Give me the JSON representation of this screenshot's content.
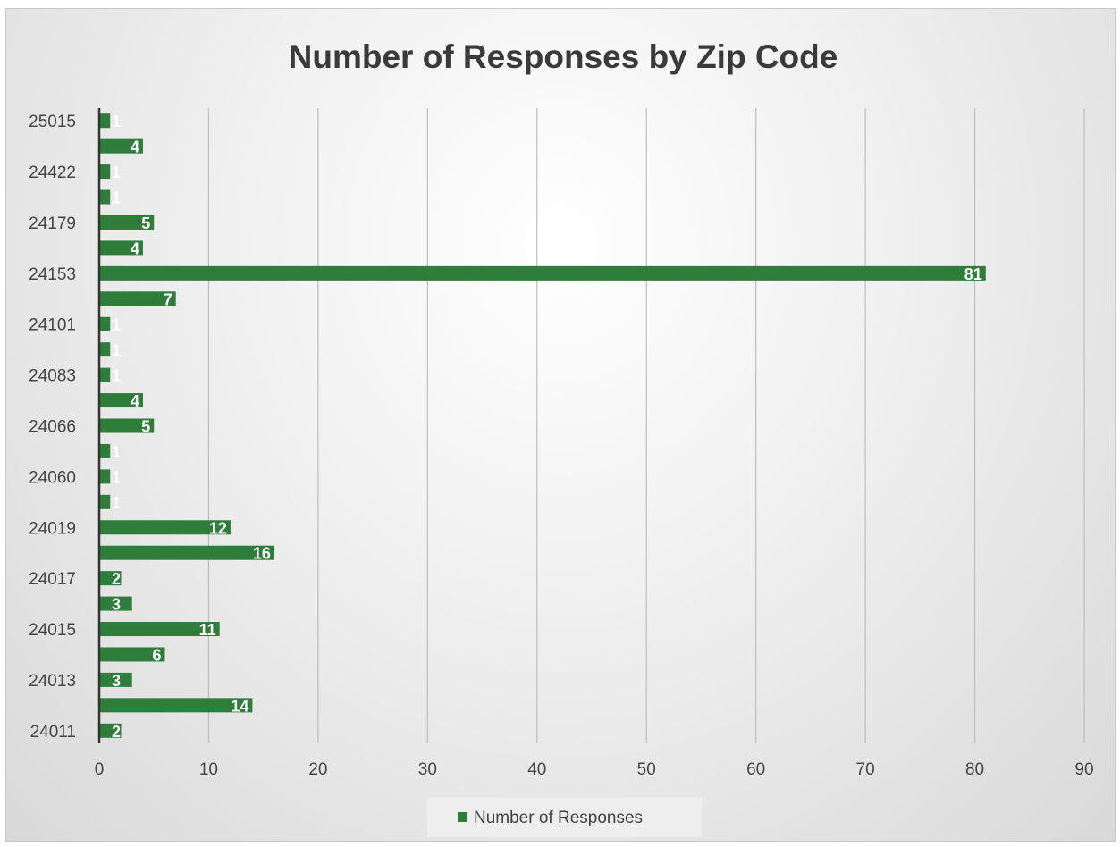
{
  "chart_data": {
    "type": "bar",
    "orientation": "horizontal",
    "title": "Number of Responses by Zip Code",
    "xlabel": "",
    "ylabel": "",
    "xlim": [
      0,
      90
    ],
    "x_ticks": [
      "0",
      "10",
      "20",
      "30",
      "40",
      "50",
      "60",
      "70",
      "80",
      "90"
    ],
    "categories": [
      "24011",
      "",
      "24013",
      "",
      "24015",
      "",
      "24017",
      "",
      "24019",
      "",
      "24060",
      "",
      "24066",
      "",
      "24083",
      "",
      "24101",
      "",
      "24153",
      "",
      "24179",
      "",
      "24422",
      "",
      "25015"
    ],
    "series": [
      {
        "name": "Number of Responses",
        "values": [
          2,
          14,
          3,
          6,
          11,
          3,
          2,
          16,
          12,
          1,
          1,
          1,
          5,
          4,
          1,
          1,
          1,
          7,
          81,
          4,
          5,
          1,
          1,
          4,
          1
        ],
        "color": "#2e7d3b"
      }
    ],
    "data_labels": true,
    "grid": "vertical",
    "legend": "bottom"
  },
  "colors": {
    "bar": "#2e7d3b",
    "gridline": "#bdbdbd",
    "axis": "#333333"
  }
}
